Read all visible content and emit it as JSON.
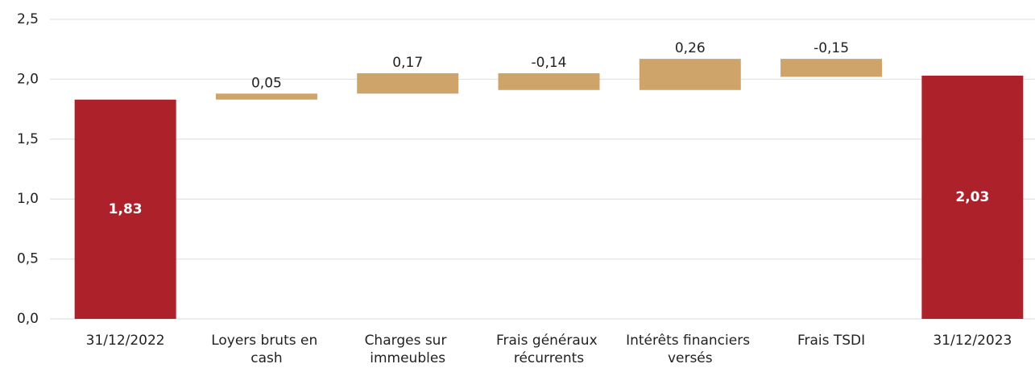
{
  "chart_data": {
    "type": "waterfall",
    "categories": [
      "31/12/2022",
      "Loyers bruts en cash",
      "Charges sur immeubles",
      "Frais généraux récurrents",
      "Intérêts financiers versés",
      "Frais TSDI",
      "31/12/2023"
    ],
    "values": [
      1.83,
      0.05,
      0.17,
      -0.14,
      0.26,
      -0.15,
      2.03
    ],
    "value_labels": [
      "1,83",
      "0,05",
      "0,17",
      "-0,14",
      "0,26",
      "-0,15",
      "2,03"
    ],
    "colors": [
      "#ad212b",
      "#cfa46b",
      "#cfa46b",
      "#cfa46b",
      "#cfa46b",
      "#cfa46b",
      "#ad212b"
    ],
    "ylim": [
      0,
      2.5
    ],
    "yticks": [
      {
        "value": 0,
        "label": "0,0"
      },
      {
        "value": 0.5,
        "label": "0,5"
      },
      {
        "value": 1,
        "label": "1,0"
      },
      {
        "value": 1.5,
        "label": "1,5"
      },
      {
        "value": 2,
        "label": "2,0"
      },
      {
        "value": 2.5,
        "label": "2,5"
      }
    ],
    "grid": true
  }
}
